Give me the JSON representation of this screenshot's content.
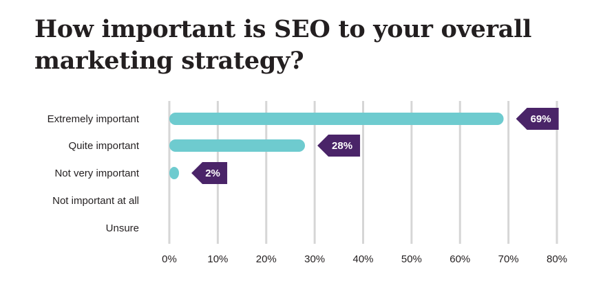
{
  "chart_data": {
    "type": "bar",
    "orientation": "horizontal",
    "title": "How important is SEO to your overall marketing strategy?",
    "categories": [
      "Extremely important",
      "Quite important",
      "Not very important",
      "Not important at all",
      "Unsure"
    ],
    "values": [
      69,
      28,
      2,
      0,
      0
    ],
    "data_labels": [
      "69%",
      "28%",
      "2%",
      "",
      ""
    ],
    "xlim": [
      0,
      80
    ],
    "x_ticks": [
      0,
      10,
      20,
      30,
      40,
      50,
      60,
      70,
      80
    ],
    "x_tick_labels": [
      "0%",
      "10%",
      "20%",
      "30%",
      "40%",
      "50%",
      "60%",
      "70%",
      "80%"
    ],
    "grid": true,
    "legend": "none",
    "colors": {
      "bar": "#6ecbcf",
      "label_bg": "#4a2468",
      "grid": "#d6d6d6",
      "text": "#231f20"
    }
  }
}
